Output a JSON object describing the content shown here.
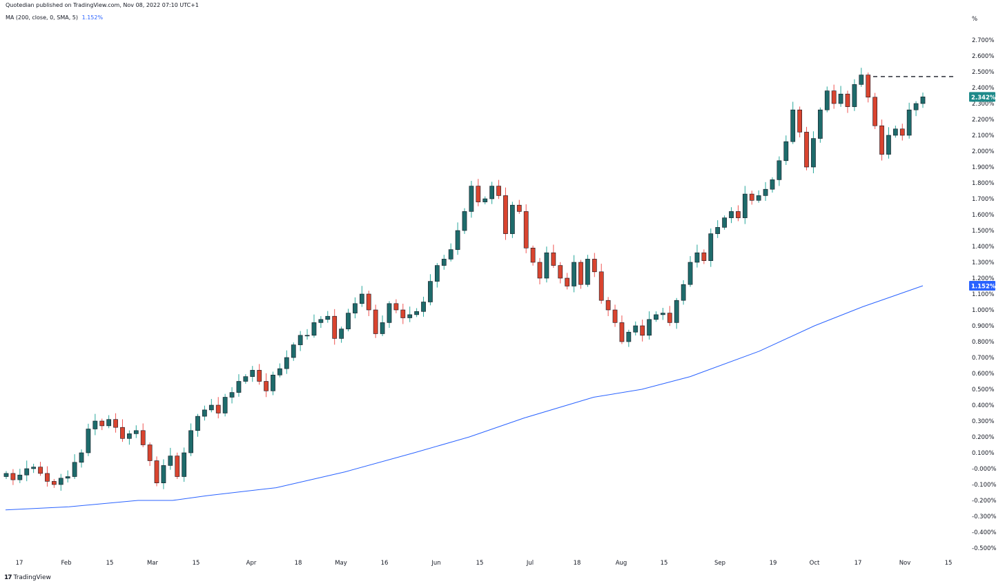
{
  "header": {
    "published": "Quotedian published on TradingView.com, Nov 08, 2022 07:10 UTC+1"
  },
  "indicator": {
    "label": "MA (200, close, 0, SMA, 5)",
    "value": "1.152%"
  },
  "footer": {
    "brand": "TradingView"
  },
  "colors": {
    "up": "#26a69a",
    "up_dark": "#1e6b6b",
    "down": "#ef5350",
    "ma": "#2962ff",
    "last_price_bg": "#1e8a8a"
  },
  "chart_data": {
    "type": "candlestick",
    "unit": "%",
    "ylim": [
      -0.55,
      2.86
    ],
    "yticks": [
      "2.700%",
      "2.600%",
      "2.500%",
      "2.400%",
      "2.300%",
      "2.200%",
      "2.100%",
      "2.000%",
      "1.900%",
      "1.800%",
      "1.700%",
      "1.600%",
      "1.500%",
      "1.400%",
      "1.300%",
      "1.200%",
      "1.100%",
      "1.000%",
      "0.900%",
      "0.800%",
      "0.700%",
      "0.600%",
      "0.500%",
      "0.400%",
      "0.300%",
      "0.200%",
      "0.100%",
      "-0.000%",
      "-0.100%",
      "-0.200%",
      "-0.300%",
      "-0.400%",
      "-0.500%"
    ],
    "xticks": [
      "17",
      "Feb",
      "15",
      "Mar",
      "15",
      "Apr",
      "18",
      "May",
      "16",
      "Jun",
      "15",
      "Jul",
      "18",
      "Aug",
      "15",
      "Sep",
      "19",
      "Oct",
      "17",
      "Nov",
      "15"
    ],
    "last_price": {
      "value": 2.342,
      "label": "2.342%"
    },
    "ma_label": {
      "value": 1.152,
      "label": "1.152%"
    },
    "resistance_level": 2.47,
    "closes": [
      -0.03,
      -0.07,
      -0.04,
      0.0,
      0.01,
      -0.03,
      -0.08,
      -0.1,
      -0.06,
      -0.05,
      0.04,
      0.1,
      0.25,
      0.3,
      0.27,
      0.31,
      0.26,
      0.19,
      0.22,
      0.24,
      0.15,
      0.05,
      -0.09,
      0.02,
      0.08,
      -0.05,
      0.1,
      0.24,
      0.33,
      0.37,
      0.4,
      0.35,
      0.45,
      0.48,
      0.55,
      0.58,
      0.62,
      0.55,
      0.49,
      0.59,
      0.63,
      0.7,
      0.78,
      0.84,
      0.84,
      0.92,
      0.94,
      0.96,
      0.82,
      0.88,
      0.98,
      1.04,
      1.1,
      1.0,
      0.85,
      0.92,
      1.04,
      1.0,
      0.95,
      0.97,
      0.99,
      1.05,
      1.18,
      1.28,
      1.32,
      1.38,
      1.5,
      1.62,
      1.78,
      1.68,
      1.7,
      1.78,
      1.72,
      1.48,
      1.66,
      1.62,
      1.39,
      1.3,
      1.2,
      1.36,
      1.28,
      1.2,
      1.15,
      1.3,
      1.16,
      1.32,
      1.24,
      1.06,
      1.0,
      0.92,
      0.8,
      0.86,
      0.9,
      0.84,
      0.94,
      0.97,
      0.98,
      0.92,
      1.06,
      1.16,
      1.3,
      1.36,
      1.31,
      1.48,
      1.52,
      1.58,
      1.62,
      1.58,
      1.73,
      1.69,
      1.72,
      1.76,
      1.82,
      1.94,
      2.06,
      2.26,
      2.12,
      1.9,
      2.08,
      2.26,
      2.38,
      2.3,
      2.36,
      2.28,
      2.42,
      2.48,
      2.34,
      2.16,
      1.98,
      2.1,
      2.14,
      2.1,
      2.26,
      2.3,
      2.342
    ]
  }
}
